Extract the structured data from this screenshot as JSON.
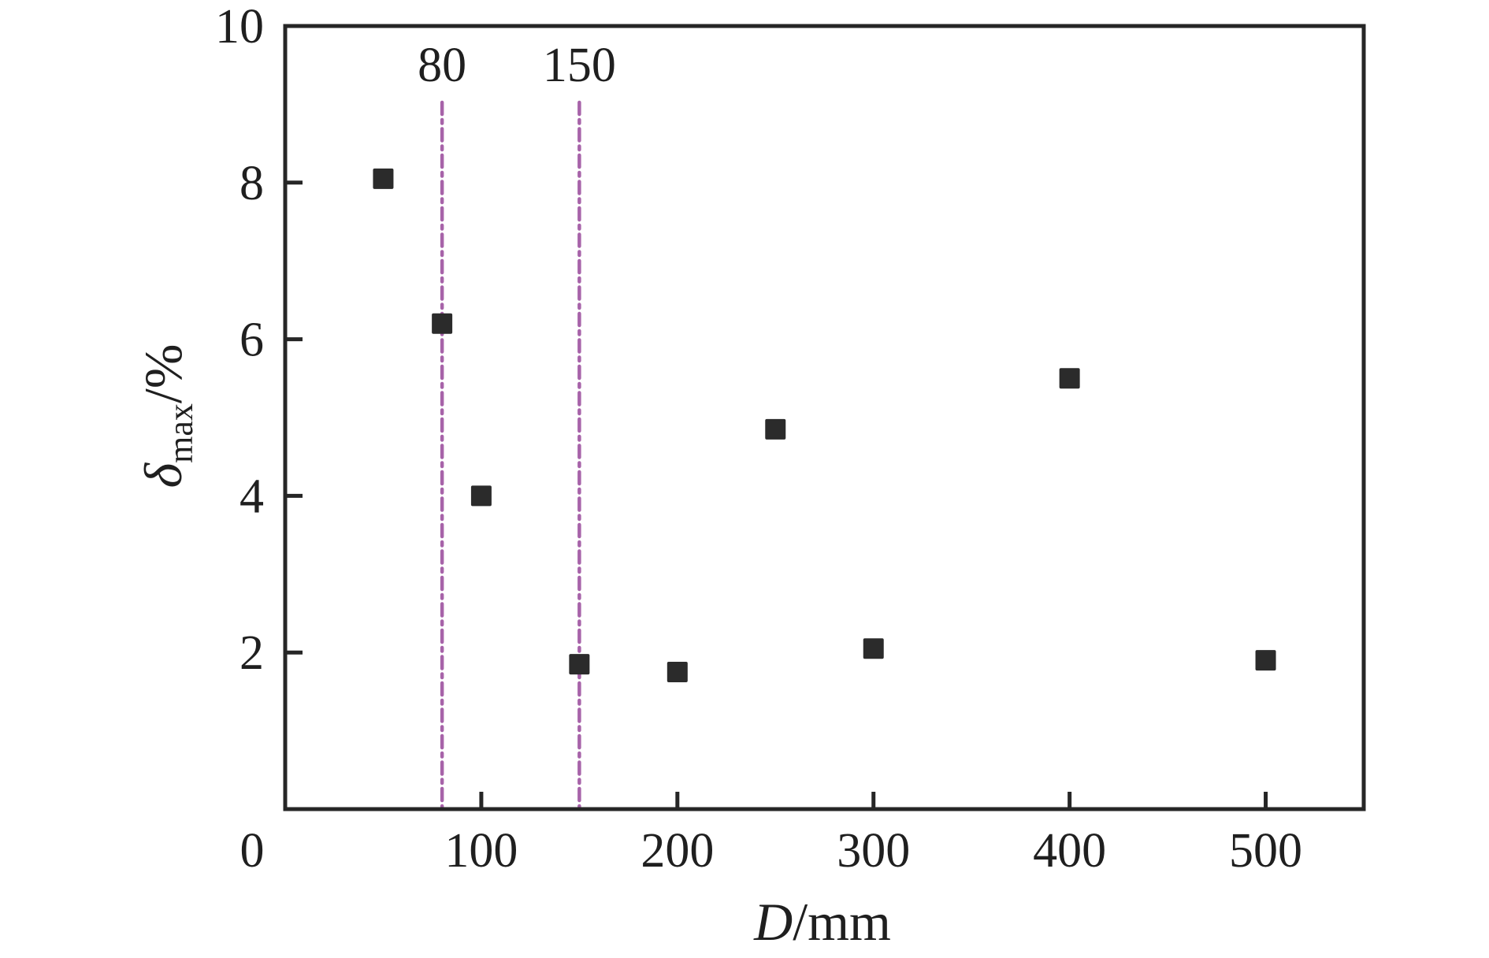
{
  "chart_data": {
    "type": "scatter",
    "title": "",
    "xlabel": {
      "variable": "D",
      "unit_suffix": "/mm"
    },
    "ylabel": {
      "variable": "δ",
      "subscript": "max",
      "unit_suffix": "/%"
    },
    "xlim": [
      0,
      550
    ],
    "ylim": [
      0,
      10
    ],
    "x_ticks": [
      0,
      100,
      200,
      300,
      400,
      500
    ],
    "y_ticks": [
      0,
      2,
      4,
      6,
      8,
      10
    ],
    "grid": false,
    "legend_position": "none",
    "series": [
      {
        "name": "delta-max-vs-D",
        "marker": "filled-square",
        "points": [
          {
            "x": 50,
            "y": 8.05
          },
          {
            "x": 80,
            "y": 6.2
          },
          {
            "x": 100,
            "y": 4.0
          },
          {
            "x": 150,
            "y": 1.85
          },
          {
            "x": 200,
            "y": 1.75
          },
          {
            "x": 250,
            "y": 4.85
          },
          {
            "x": 300,
            "y": 2.05
          },
          {
            "x": 400,
            "y": 5.5
          },
          {
            "x": 500,
            "y": 1.9
          }
        ]
      }
    ],
    "reference_lines": [
      {
        "x": 80,
        "label": "80"
      },
      {
        "x": 150,
        "label": "150"
      }
    ]
  },
  "colors": {
    "background": "#ffffff",
    "axis": "#262626",
    "text": "#1f1f1f",
    "marker": "#2b2b2b",
    "reference_line": "#a763a9"
  }
}
